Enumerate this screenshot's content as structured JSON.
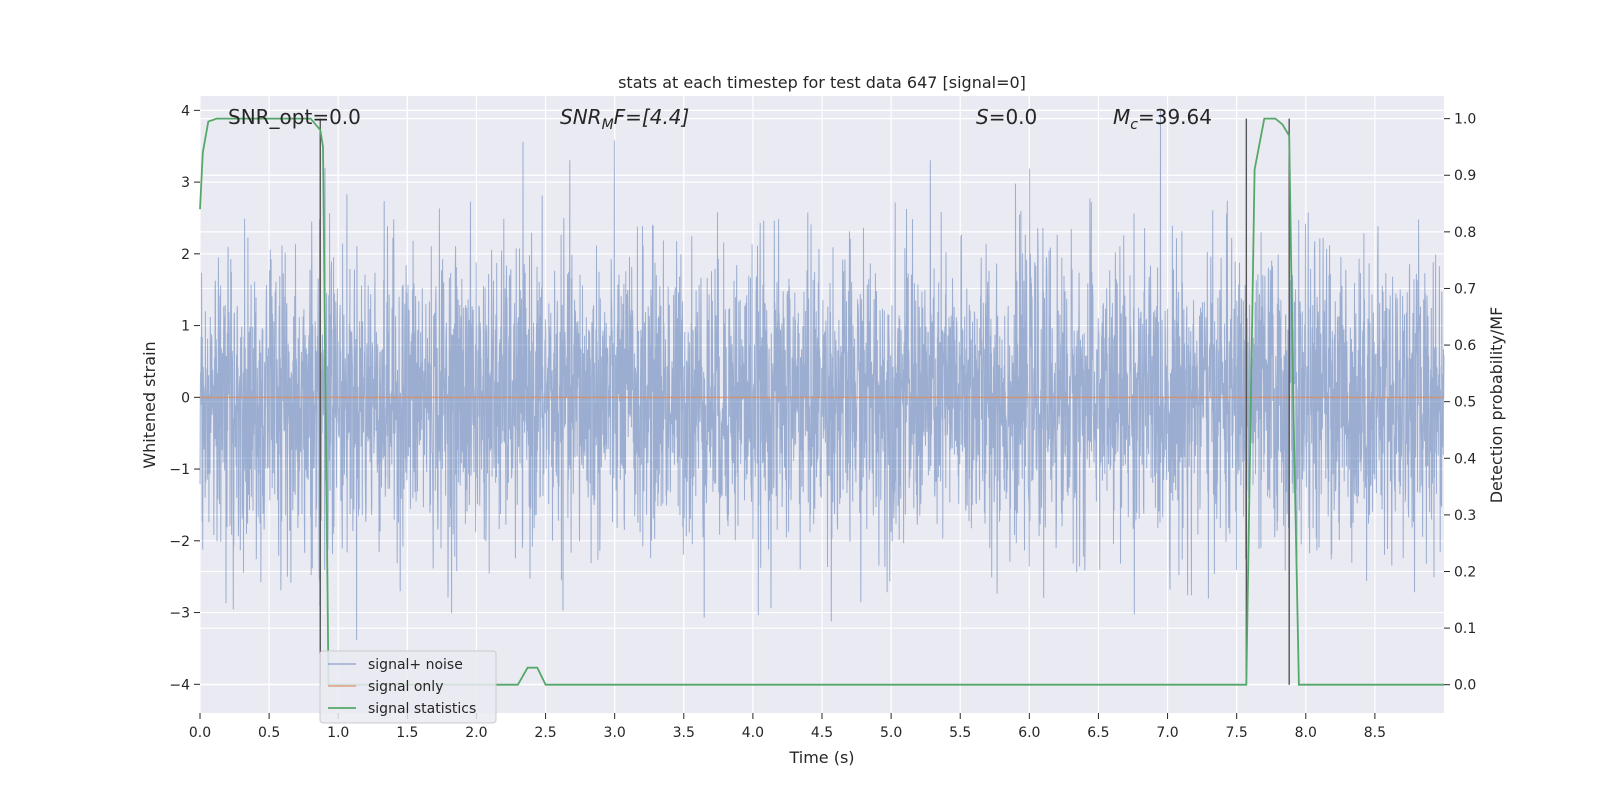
{
  "chart_data": {
    "type": "line",
    "title": "stats at each timestep for test data 647 [signal=0]",
    "xlabel": "Time (s)",
    "ylabel_left": "Whitened strain",
    "ylabel_right": "Detection probability/MF",
    "xlim": [
      0.0,
      9.0
    ],
    "ylim_left": [
      -4.4,
      4.2
    ],
    "ylim_right": [
      -0.05,
      1.04
    ],
    "x_ticks": [
      "0.0",
      "0.5",
      "1.0",
      "1.5",
      "2.0",
      "2.5",
      "3.0",
      "3.5",
      "4.0",
      "4.5",
      "5.0",
      "5.5",
      "6.0",
      "6.5",
      "7.0",
      "7.5",
      "8.0",
      "8.5"
    ],
    "y_left_ticks": [
      "4",
      "3",
      "2",
      "1",
      "0",
      "−1",
      "−2",
      "−3",
      "−4"
    ],
    "y_right_ticks": [
      "1.0",
      "0.9",
      "0.8",
      "0.7",
      "0.6",
      "0.5",
      "0.4",
      "0.3",
      "0.2",
      "0.1",
      "0.0"
    ],
    "grid": true,
    "legend_position": "lower-left",
    "annotations": {
      "snr_opt": "SNR_opt=0.0",
      "snr_mf_base": "SNR",
      "snr_mf_sub": "M",
      "snr_mf_rest": "F=[4.4]",
      "s_italic": "S",
      "s_rest": "=0.0",
      "mc_base": "M",
      "mc_sub": "c",
      "mc_rest": "=39.64"
    },
    "vertical_lines_x": [
      0.87,
      7.57,
      7.88
    ],
    "series": [
      {
        "name": "signal+ noise",
        "color": "#4c72b0",
        "axis": "left",
        "description_points": {
          "noise_envelope": [
            -4.0,
            4.0
          ],
          "x_range": [
            0.0,
            9.0
          ]
        }
      },
      {
        "name": "signal only",
        "color": "#dd8452",
        "axis": "left",
        "x": [
          0.0,
          9.0
        ],
        "y": [
          0.0,
          0.0
        ]
      },
      {
        "name": "signal statistics",
        "color": "#55a868",
        "axis": "right",
        "x": [
          0.0,
          0.02,
          0.06,
          0.12,
          0.2,
          0.3,
          0.5,
          0.7,
          0.8,
          0.87,
          0.89,
          0.93,
          1.0,
          1.5,
          2.0,
          2.3,
          2.37,
          2.44,
          2.5,
          3.0,
          4.0,
          5.0,
          6.0,
          7.0,
          7.5,
          7.57,
          7.63,
          7.7,
          7.78,
          7.83,
          7.88,
          7.91,
          7.95,
          8.5,
          9.0
        ],
        "y": [
          0.84,
          0.94,
          0.995,
          1.0,
          1.0,
          1.0,
          1.0,
          1.0,
          1.0,
          0.98,
          0.95,
          0.0,
          0.0,
          0.0,
          0.0,
          0.0,
          0.03,
          0.03,
          0.0,
          0.0,
          0.0,
          0.0,
          0.0,
          0.0,
          0.0,
          0.0,
          0.91,
          1.0,
          1.0,
          0.99,
          0.97,
          0.5,
          0.0,
          0.0,
          0.0
        ]
      }
    ]
  }
}
